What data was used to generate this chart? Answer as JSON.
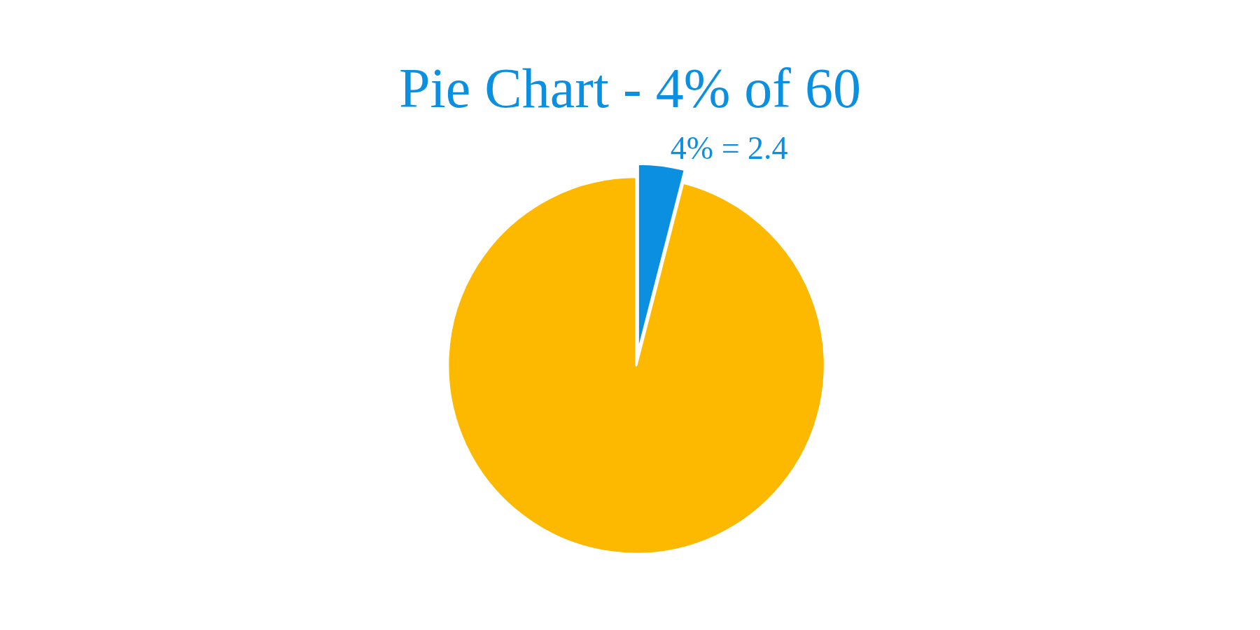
{
  "chart_data": {
    "type": "pie",
    "title": "Pie Chart - 4% of 60",
    "categories": [
      null,
      null
    ],
    "values": [
      4,
      96
    ],
    "colors": [
      "#0b8fe0",
      "#fcb900"
    ],
    "value_labels": [
      "4% = 2.4",
      null
    ],
    "legend": false
  }
}
